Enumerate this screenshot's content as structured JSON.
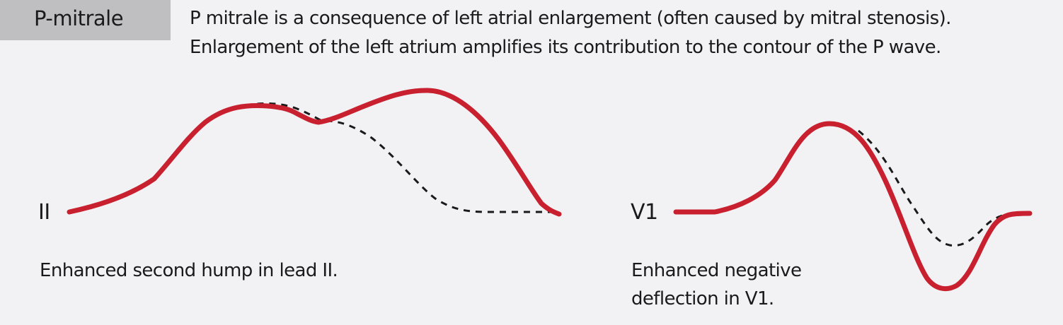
{
  "title": "P-mitrale",
  "description": {
    "line1": "P mitrale is a consequence of left atrial enlargement (often caused by mitral stenosis).",
    "line2": "Enlargement of the left atrium amplifies its contribution to the contour of the P wave."
  },
  "leads": [
    {
      "label": "II",
      "caption_lines": [
        "Enhanced second hump in lead II."
      ]
    },
    {
      "label": "V1",
      "caption_lines": [
        "Enhanced negative",
        "deflection in V1."
      ]
    }
  ],
  "colors": {
    "waveform": "#c8202f",
    "reference": "#1a1a1a",
    "title_box": "#bfbfc1",
    "background": "#f2f2f4"
  }
}
